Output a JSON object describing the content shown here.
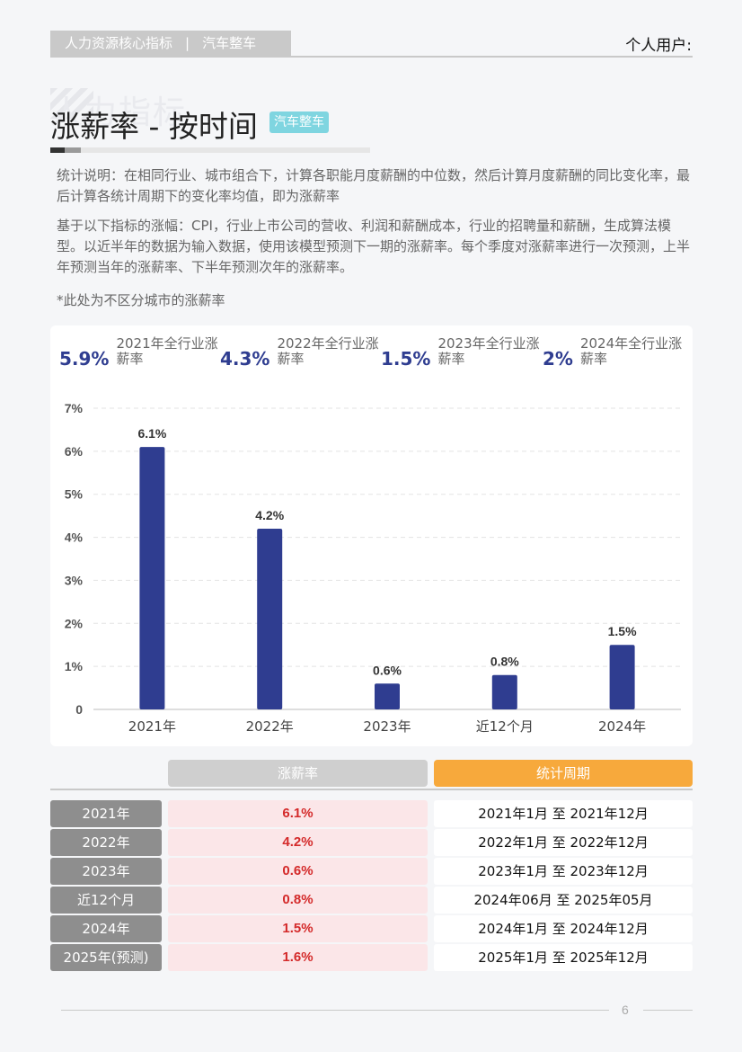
{
  "header": {
    "tab_left": "人力资源核心指标",
    "tab_sep": "|",
    "tab_right": "汽车整车",
    "user_label": "个人用户:"
  },
  "title": {
    "watermark": "人力指标",
    "main": "涨薪率 - 按时间",
    "tag": "汽车整车"
  },
  "description": {
    "p1": "统计说明：在相同行业、城市组合下，计算各职能月度薪酬的中位数，然后计算月度薪酬的同比变化率，最后计算各统计周期下的变化率均值，即为涨薪率",
    "p2": "基于以下指标的涨幅：CPI，行业上市公司的营收、利润和薪酬成本，行业的招聘量和薪酬，生成算法模型。以近半年的数据为输入数据，使用该模型预测下一期的涨薪率。每个季度对涨薪率进行一次预测，上半年预测当年的涨薪率、下半年预测次年的涨薪率。",
    "p3": "*此处为不区分城市的涨薪率"
  },
  "stats": [
    {
      "value": "5.9%",
      "label": "2021年全行业涨薪率"
    },
    {
      "value": "4.3%",
      "label": "2022年全行业涨薪率"
    },
    {
      "value": "1.5%",
      "label": "2023年全行业涨薪率"
    },
    {
      "value": "2%",
      "label": "2024年全行业涨薪率"
    }
  ],
  "chart_data": {
    "type": "bar",
    "categories": [
      "2021年",
      "2022年",
      "2023年",
      "近12个月",
      "2024年"
    ],
    "values": [
      6.1,
      4.2,
      0.6,
      0.8,
      1.5
    ],
    "data_labels": [
      "6.1%",
      "4.2%",
      "0.6%",
      "0.8%",
      "1.5%"
    ],
    "y_ticks": [
      "0",
      "1%",
      "2%",
      "3%",
      "4%",
      "5%",
      "6%",
      "7%"
    ],
    "ylim": [
      0,
      7
    ],
    "grid": true,
    "bar_color": "#2f3d90"
  },
  "table": {
    "header_rate": "涨薪率",
    "header_period": "统计周期",
    "rows": [
      {
        "year": "2021年",
        "rate": "6.1%",
        "period": "2021年1月 至 2021年12月"
      },
      {
        "year": "2022年",
        "rate": "4.2%",
        "period": "2022年1月 至 2022年12月"
      },
      {
        "year": "2023年",
        "rate": "0.6%",
        "period": "2023年1月 至 2023年12月"
      },
      {
        "year": "近12个月",
        "rate": "0.8%",
        "period": "2024年06月 至 2025年05月"
      },
      {
        "year": "2024年",
        "rate": "1.5%",
        "period": "2024年1月 至 2024年12月"
      },
      {
        "year": "2025年(预测)",
        "rate": "1.6%",
        "period": "2025年1月 至 2025年12月"
      }
    ]
  },
  "footer": {
    "page_number": "6"
  },
  "colors": {
    "accent_blue": "#2f3d90",
    "orange": "#f7a93c",
    "rate_red": "#d42a2a",
    "tag_cyan": "#7fd5e0"
  }
}
